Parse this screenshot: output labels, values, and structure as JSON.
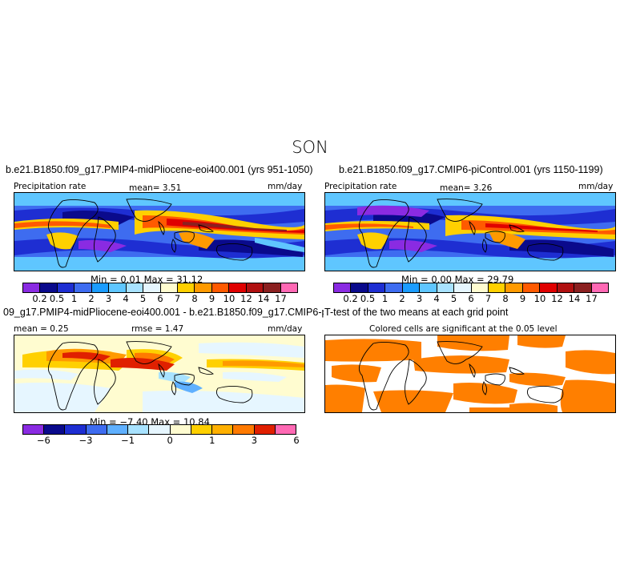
{
  "figure": {
    "title": "SON"
  },
  "chart_data": [
    {
      "type": "heatmap",
      "title": "b.e21.B1850.f09_g17.PMIP4-midPliocene-eoi400.001 (yrs 951-1050)",
      "left_label": "Precipitation rate",
      "center_label": "mean=    3.51",
      "units": "mm/day",
      "stats": "Min =    0.01  Max =   31.12",
      "colorbar": {
        "colors": [
          "#8a2be2",
          "#0a0a8c",
          "#1e2ed2",
          "#3e6cf0",
          "#1b9cff",
          "#5fc6ff",
          "#a8e2ff",
          "#e6f6ff",
          "#fffcd0",
          "#ffd000",
          "#ff9a00",
          "#ff5a00",
          "#e00000",
          "#b01010",
          "#8b2020",
          "#ff69b4"
        ],
        "tick_labels": [
          "0.2",
          "0.5",
          "1",
          "2",
          "3",
          "4",
          "5",
          "6",
          "7",
          "8",
          "9",
          "10",
          "12",
          "14",
          "17"
        ]
      }
    },
    {
      "type": "heatmap",
      "title": "b.e21.B1850.f09_g17.CMIP6-piControl.001 (yrs 1150-1199)",
      "left_label": "Precipitation rate",
      "center_label": "mean=    3.26",
      "units": "mm/day",
      "stats": "Min =    0.00  Max =   29.79",
      "colorbar": {
        "colors": [
          "#8a2be2",
          "#0a0a8c",
          "#1e2ed2",
          "#3e6cf0",
          "#1b9cff",
          "#5fc6ff",
          "#a8e2ff",
          "#e6f6ff",
          "#fffcd0",
          "#ffd000",
          "#ff9a00",
          "#ff5a00",
          "#e00000",
          "#b01010",
          "#8b2020",
          "#ff69b4"
        ],
        "tick_labels": [
          "0.2",
          "0.5",
          "1",
          "2",
          "3",
          "4",
          "5",
          "6",
          "7",
          "8",
          "9",
          "10",
          "12",
          "14",
          "17"
        ]
      }
    },
    {
      "type": "heatmap",
      "title": "09_g17.PMIP4-midPliocene-eoi400.001 - b.e21.B1850.f09_g17.CMIP6-piControl.001",
      "left_label": "mean =   0.25",
      "center_label": "rmse =    1.47",
      "units": "mm/day",
      "stats": "Min =  −7.40  Max =   10.84",
      "colorbar": {
        "colors": [
          "#8a2be2",
          "#0a0a8c",
          "#1e2ed2",
          "#3e6cf0",
          "#5fb0ff",
          "#a8e2ff",
          "#e6f6ff",
          "#fffcd0",
          "#ffd000",
          "#ffb000",
          "#ff7a00",
          "#e02000",
          "#ff69b4"
        ],
        "tick_labels": [
          "−6",
          "−3",
          "−1",
          "0",
          "1",
          "3",
          "6"
        ]
      }
    },
    {
      "type": "heatmap",
      "title": "T-test of the two means at each grid point",
      "left_label": "",
      "center_label": "Colored cells are significant at the 0.05 level",
      "units": "",
      "color": "#ff7f00"
    }
  ]
}
